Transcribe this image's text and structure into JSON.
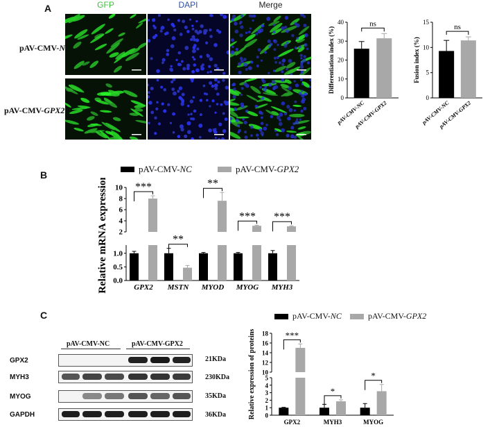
{
  "panelA": {
    "letter": "A",
    "columns": [
      "GFP",
      "DAPI",
      "Merge"
    ],
    "rows": [
      {
        "prefix": "pAV-CMV-",
        "gene": "NC"
      },
      {
        "prefix": "pAV-CMV-",
        "gene": "GPX2"
      }
    ],
    "colors": {
      "gfp": "#3fd13f",
      "dapi": "#2a2ad8"
    }
  },
  "panelB": {
    "letter": "B",
    "legend": {
      "nc_prefix": "pAV-CMV-",
      "nc_gene": "NC",
      "gpx2_prefix": "pAV-CMV-",
      "gpx2_gene": "GPX2"
    }
  },
  "panelC": {
    "letter": "C",
    "legend": {
      "nc_prefix": "pAV-CMV-",
      "nc_gene": "NC",
      "gpx2_prefix": "pAV-CMV-",
      "gpx2_gene": "GPX2"
    },
    "western": {
      "group_nc": "pAV-CMV-NC",
      "group_gpx2": "pAV-CMV-GPX2",
      "rows": [
        {
          "protein": "GPX2",
          "kda": "21KDa"
        },
        {
          "protein": "MYH3",
          "kda": "230KDa"
        },
        {
          "protein": "MYOG",
          "kda": "35KDa"
        },
        {
          "protein": "GAPDH",
          "kda": "36KDa"
        }
      ]
    }
  },
  "colors": {
    "nc": "#000000",
    "gpx2": "#a8a8a8"
  },
  "chart_data": [
    {
      "id": "differentiation",
      "type": "bar",
      "ylabel": "Differentiation index (%)",
      "categories": [
        "pAV-CMV-NC",
        "pAV-CMV-GPX2"
      ],
      "values": [
        26,
        31.5
      ],
      "errors": [
        3.8,
        2.5
      ],
      "ylim": [
        0,
        40
      ],
      "yticks": [
        "0",
        "10",
        "20",
        "30",
        "40"
      ],
      "yticks_val": [
        0,
        10,
        20,
        30,
        40
      ],
      "significance": "ns"
    },
    {
      "id": "fusion",
      "type": "bar",
      "ylabel": "Fusion index (%)",
      "categories": [
        "pAV-CMV-NC",
        "pAV-CMV-GPX2"
      ],
      "values": [
        9.3,
        11.4
      ],
      "errors": [
        2.1,
        0.7
      ],
      "ylim": [
        0,
        15
      ],
      "yticks": [
        "0",
        "5",
        "10",
        "15"
      ],
      "yticks_val": [
        0,
        5,
        10,
        15
      ],
      "significance": "ns"
    },
    {
      "id": "mrna",
      "type": "bar",
      "ylabel": "Relative mRNA expression",
      "categories": [
        "GPX2",
        "MSTN",
        "MYOD",
        "MYOG",
        "MYH3"
      ],
      "series": [
        {
          "name": "pAV-CMV-NC",
          "values": [
            1.0,
            1.0,
            1.0,
            1.0,
            1.0
          ],
          "errors": [
            0.07,
            0.18,
            0.03,
            0.03,
            0.1
          ]
        },
        {
          "name": "pAV-CMV-GPX2",
          "values": [
            8.0,
            0.47,
            7.6,
            3.1,
            3.0
          ],
          "errors": [
            0.5,
            0.08,
            1.5,
            0.1,
            0.1
          ]
        }
      ],
      "significance": [
        "***",
        "**",
        "**",
        "***",
        "***"
      ],
      "yticks": [
        "0.0",
        "0.5",
        "1.0",
        "2",
        "4",
        "6",
        "8",
        "10"
      ],
      "yticks_val": [
        0,
        0.5,
        1.0,
        2,
        4,
        6,
        8,
        10
      ],
      "axis_break": [
        1.3,
        2.2
      ]
    },
    {
      "id": "protein",
      "type": "bar",
      "ylabel": "Relative expression of proteins",
      "categories": [
        "GPX2",
        "MYH3",
        "MYOG"
      ],
      "series": [
        {
          "name": "pAV-CMV-NC",
          "values": [
            1.0,
            1.0,
            1.0
          ],
          "errors": [
            0.05,
            0.45,
            0.55
          ]
        },
        {
          "name": "pAV-CMV-GPX2",
          "values": [
            15.0,
            1.85,
            3.2
          ],
          "errors": [
            0.8,
            0.2,
            0.9
          ]
        }
      ],
      "significance": [
        "***",
        "*",
        "*"
      ],
      "yticks": [
        "0",
        "1",
        "2",
        "3",
        "4",
        "5",
        "10",
        "12",
        "14",
        "16",
        "18"
      ],
      "yticks_val": [
        0,
        1,
        2,
        3,
        4,
        5,
        10,
        12,
        14,
        16,
        18
      ],
      "axis_break": [
        5,
        10
      ]
    }
  ]
}
